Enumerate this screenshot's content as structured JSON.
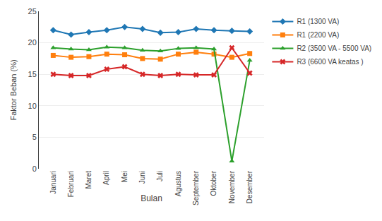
{
  "chart_data": {
    "type": "line",
    "xlabel": "Bulan",
    "ylabel": "Faktor Beban (%)",
    "categories": [
      "Januari",
      "Februari",
      "Maret",
      "April",
      "Mei",
      "Juni",
      "Juli",
      "Agustus",
      "September",
      "Oktober",
      "November",
      "Desember"
    ],
    "series": [
      {
        "name": "R1 (1300 VA)",
        "marker": "diamond",
        "values": [
          22.0,
          21.3,
          21.7,
          22.0,
          22.5,
          22.2,
          21.6,
          21.7,
          22.2,
          22.0,
          21.9,
          21.8
        ]
      },
      {
        "name": "R1 (2200 VA)",
        "marker": "square",
        "values": [
          18.0,
          17.7,
          17.8,
          18.2,
          18.1,
          17.5,
          17.4,
          18.2,
          18.5,
          18.2,
          17.7,
          18.3
        ]
      },
      {
        "name": "R2 (3500 VA - 5500 VA)",
        "marker": "triangle-up",
        "values": [
          19.2,
          19.0,
          18.9,
          19.3,
          19.2,
          18.8,
          18.7,
          19.1,
          19.2,
          19.0,
          1.2,
          17.2
        ]
      },
      {
        "name": "R3 (6600 VA keatas )",
        "marker": "x",
        "values": [
          15.0,
          14.8,
          14.8,
          15.8,
          16.2,
          15.0,
          14.8,
          15.0,
          14.9,
          14.9,
          19.2,
          15.2
        ]
      }
    ],
    "ylim": [
      0,
      25
    ],
    "yticks": [
      0,
      5,
      10,
      15,
      20,
      25
    ],
    "grid": true,
    "legend": "right"
  }
}
